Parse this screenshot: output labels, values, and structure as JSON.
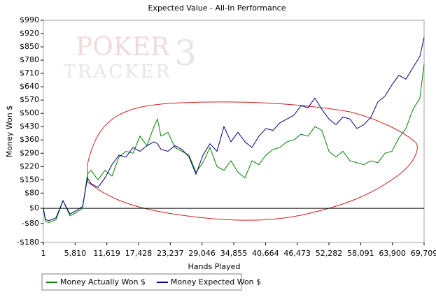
{
  "chart_data": {
    "type": "line",
    "title": "Expected Value - All-In Performance",
    "xlabel": "Hands Played",
    "ylabel": "Money Won $",
    "watermark": [
      "POKER",
      "TRACKER",
      "3"
    ],
    "x": [
      1,
      385,
      1026,
      2307,
      3589,
      4870,
      6152,
      7177,
      8074,
      8715,
      9996,
      11278,
      12559,
      13841,
      15122,
      16403,
      17685,
      18966,
      20248,
      20889,
      21529,
      22811,
      24092,
      25374,
      26655,
      27936,
      29218,
      30499,
      31781,
      33062,
      34344,
      35625,
      36906,
      38188,
      39469,
      40751,
      42032,
      43314,
      44595,
      45876,
      47158,
      48439,
      49721,
      51002,
      52284,
      53565,
      54846,
      56128,
      57409,
      58691,
      59972,
      61254,
      62535,
      63817,
      65098,
      66379,
      67661,
      68942,
      69709
    ],
    "series": [
      {
        "name": "Money Actually Won $",
        "color": "#008000",
        "values": [
          0,
          -70,
          -75,
          -60,
          40,
          -40,
          -20,
          0,
          180,
          200,
          150,
          200,
          170,
          270,
          300,
          290,
          380,
          330,
          430,
          470,
          380,
          400,
          320,
          300,
          280,
          190,
          240,
          320,
          220,
          200,
          250,
          190,
          160,
          250,
          230,
          280,
          310,
          320,
          350,
          360,
          390,
          380,
          430,
          410,
          300,
          270,
          300,
          250,
          240,
          230,
          250,
          240,
          290,
          300,
          370,
          420,
          520,
          580,
          760
        ]
      },
      {
        "name": "Money Expected Won $",
        "color": "#000080",
        "values": [
          0,
          -60,
          -65,
          -50,
          40,
          -30,
          -10,
          10,
          160,
          130,
          110,
          160,
          230,
          280,
          270,
          320,
          300,
          330,
          350,
          340,
          310,
          300,
          330,
          310,
          270,
          180,
          280,
          340,
          300,
          430,
          350,
          400,
          350,
          320,
          380,
          420,
          410,
          450,
          470,
          490,
          540,
          530,
          580,
          520,
          470,
          440,
          480,
          470,
          420,
          440,
          480,
          560,
          590,
          650,
          700,
          680,
          740,
          800,
          900
        ]
      }
    ],
    "xlim": [
      1,
      69709
    ],
    "xticks": [
      1,
      {
        "value": 5810,
        "label": "5,810"
      },
      {
        "value": 11619,
        "label": "11,619"
      },
      {
        "value": 17428,
        "label": "17,428"
      },
      {
        "value": 23237,
        "label": "23,237"
      },
      {
        "value": 29046,
        "label": "29,046"
      },
      {
        "value": 34855,
        "label": "34,855"
      },
      {
        "value": 40664,
        "label": "40,664"
      },
      {
        "value": 46473,
        "label": "46,473"
      },
      {
        "value": 52282,
        "label": "52,282"
      },
      {
        "value": 58091,
        "label": "58,091"
      },
      {
        "value": 63900,
        "label": "63,900"
      },
      {
        "value": 69709,
        "label": "69,709"
      }
    ],
    "ylim": [
      -180,
      990
    ],
    "yticks": [
      {
        "value": 990,
        "label": "$990"
      },
      {
        "value": 920,
        "label": "$920"
      },
      {
        "value": 850,
        "label": "$850"
      },
      {
        "value": 780,
        "label": "$780"
      },
      {
        "value": 710,
        "label": "$710"
      },
      {
        "value": 640,
        "label": "$640"
      },
      {
        "value": 570,
        "label": "$570"
      },
      {
        "value": 500,
        "label": "$500"
      },
      {
        "value": 430,
        "label": "$430"
      },
      {
        "value": 360,
        "label": "$360"
      },
      {
        "value": 290,
        "label": "$290"
      },
      {
        "value": 220,
        "label": "$220"
      },
      {
        "value": 150,
        "label": "$150"
      },
      {
        "value": 80,
        "label": "$80"
      },
      {
        "value": 0,
        "label": "$0"
      },
      {
        "value": -80,
        "label": "-$80"
      },
      {
        "value": -180,
        "label": "-$180"
      }
    ],
    "grid": false,
    "legend": "bottom"
  }
}
